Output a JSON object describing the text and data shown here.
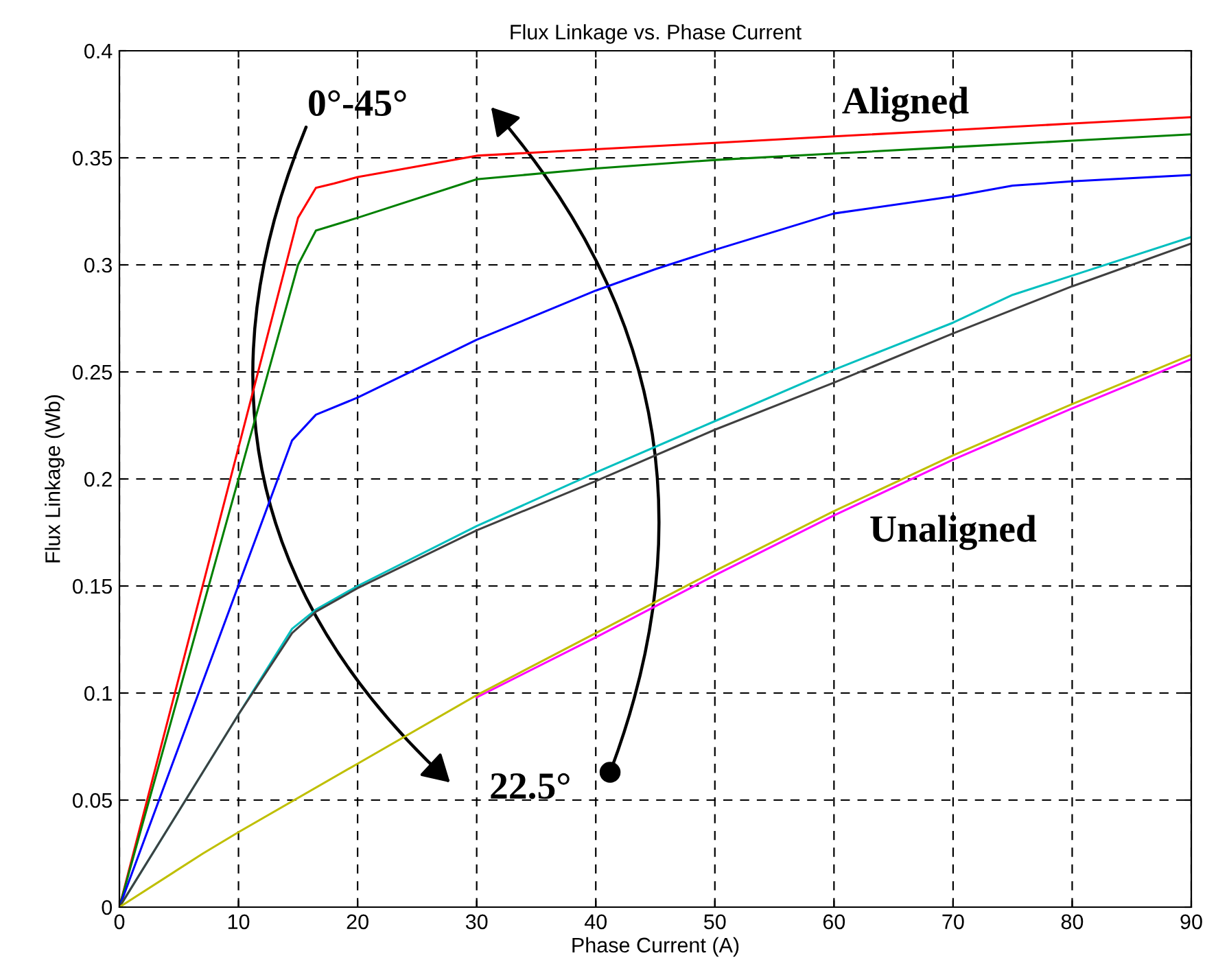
{
  "chart_data": {
    "type": "line",
    "title": "Flux Linkage vs. Phase Current",
    "xlabel": "Phase Current (A)",
    "ylabel": "Flux Linkage (Wb)",
    "xlim": [
      0,
      90
    ],
    "ylim": [
      0,
      0.4
    ],
    "xticks": [
      0,
      10,
      20,
      30,
      40,
      50,
      60,
      70,
      80,
      90
    ],
    "yticks": [
      0,
      0.05,
      0.1,
      0.15,
      0.2,
      0.25,
      0.3,
      0.35,
      0.4
    ],
    "grid": true,
    "line_style": "solid",
    "series": [
      {
        "color": "#ff0000",
        "x": [
          0,
          15,
          16.5,
          18,
          20,
          30,
          40,
          50,
          60,
          70,
          80,
          90
        ],
        "values": [
          0,
          0.322,
          0.336,
          0.338,
          0.341,
          0.351,
          0.354,
          0.357,
          0.36,
          0.363,
          0.366,
          0.369
        ]
      },
      {
        "color": "#008000",
        "x": [
          0,
          15,
          16.5,
          20,
          30,
          40,
          50,
          60,
          70,
          80,
          90
        ],
        "values": [
          0,
          0.3,
          0.316,
          0.322,
          0.34,
          0.345,
          0.349,
          0.352,
          0.355,
          0.358,
          0.361
        ]
      },
      {
        "color": "#0000ff",
        "x": [
          0,
          14.5,
          16.5,
          20,
          30,
          40,
          45,
          50,
          60,
          70,
          75,
          80,
          90
        ],
        "values": [
          0,
          0.218,
          0.23,
          0.238,
          0.265,
          0.288,
          0.298,
          0.307,
          0.324,
          0.332,
          0.337,
          0.339,
          0.342
        ]
      },
      {
        "color": "#00bfbf",
        "x": [
          0,
          10,
          14.5,
          16.5,
          20,
          30,
          40,
          50,
          60,
          70,
          75,
          80,
          90
        ],
        "values": [
          0,
          0.09,
          0.13,
          0.139,
          0.15,
          0.178,
          0.203,
          0.227,
          0.251,
          0.273,
          0.286,
          0.295,
          0.313
        ]
      },
      {
        "color": "#404040",
        "x": [
          0,
          10,
          14.5,
          16.5,
          20,
          30,
          40,
          50,
          60,
          70,
          80,
          90
        ],
        "values": [
          0,
          0.09,
          0.128,
          0.138,
          0.149,
          0.176,
          0.199,
          0.223,
          0.245,
          0.268,
          0.29,
          0.31
        ]
      },
      {
        "color": "#ff00ff",
        "x": [
          30,
          40,
          50,
          60,
          70,
          80,
          90
        ],
        "values": [
          0.098,
          0.126,
          0.155,
          0.183,
          0.209,
          0.233,
          0.256
        ]
      },
      {
        "color": "#bfbf00",
        "x": [
          0,
          7,
          10,
          20,
          30,
          40,
          50,
          60,
          70,
          80,
          90
        ],
        "values": [
          0,
          0.025,
          0.035,
          0.067,
          0.099,
          0.128,
          0.157,
          0.185,
          0.211,
          0.235,
          0.258
        ]
      }
    ],
    "annotations": [
      "Aligned",
      "Unaligned",
      "0°-45°",
      "22.5°"
    ]
  }
}
